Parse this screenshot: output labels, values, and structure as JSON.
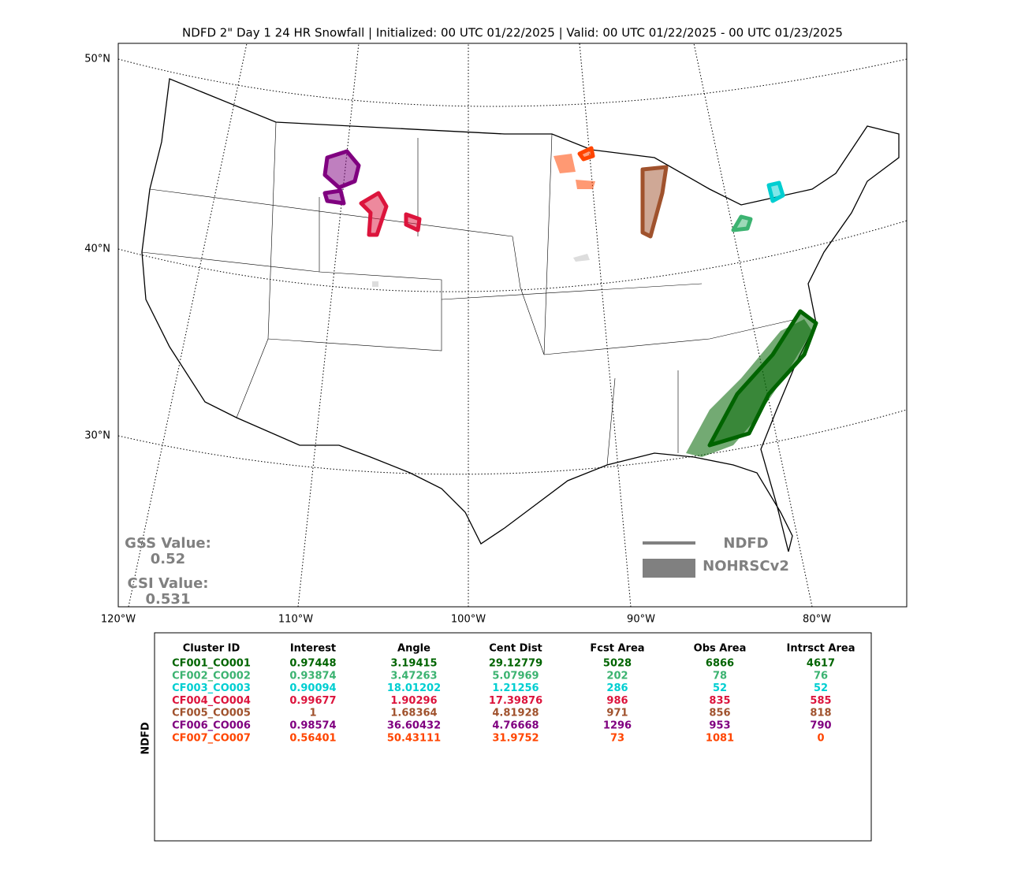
{
  "header": {
    "title": "NDFD 2\" Day 1 24 HR Snowfall | Initialized: 00 UTC 01/22/2025 | Valid: 00 UTC 01/22/2025 - 00 UTC 01/23/2025"
  },
  "map": {
    "lat_labels": [
      "50°N",
      "40°N",
      "30°N"
    ],
    "lon_labels": [
      "120°W",
      "110°W",
      "100°W",
      "90°W",
      "80°W"
    ],
    "scores": {
      "gss_label": "GSS Value:",
      "gss_value": 0.52,
      "csi_label": "CSI Value:",
      "csi_value": 0.531
    },
    "legend": {
      "line_label": "NDFD",
      "fill_label": "NOHRSCv2",
      "color": "#808080"
    }
  },
  "table": {
    "side_label": "NDFD",
    "columns": [
      "Cluster ID",
      "Interest",
      "Angle",
      "Cent Dist",
      "Fcst Area",
      "Obs Area",
      "Intrsct Area"
    ],
    "row_colors": [
      "#006400",
      "#3cb371",
      "#00ced1",
      "#dc143c",
      "#a0522d",
      "#800080",
      "#ff4500"
    ],
    "rows": [
      [
        "CF001_CO001",
        0.97448,
        3.19415,
        29.12779,
        5028,
        6866,
        4617
      ],
      [
        "CF002_CO002",
        0.93874,
        3.47263,
        5.07969,
        202,
        78,
        76
      ],
      [
        "CF003_CO003",
        0.90094,
        18.01202,
        1.21256,
        286,
        52,
        52
      ],
      [
        "CF004_CO004",
        0.99677,
        1.90296,
        17.39876,
        986,
        835,
        585
      ],
      [
        "CF005_CO005",
        1,
        1.68364,
        4.81928,
        971,
        856,
        818
      ],
      [
        "CF006_CO006",
        0.98574,
        36.60432,
        4.76668,
        1296,
        953,
        790
      ],
      [
        "CF007_CO007",
        0.56401,
        50.43111,
        31.9752,
        73,
        1081,
        0
      ]
    ]
  }
}
